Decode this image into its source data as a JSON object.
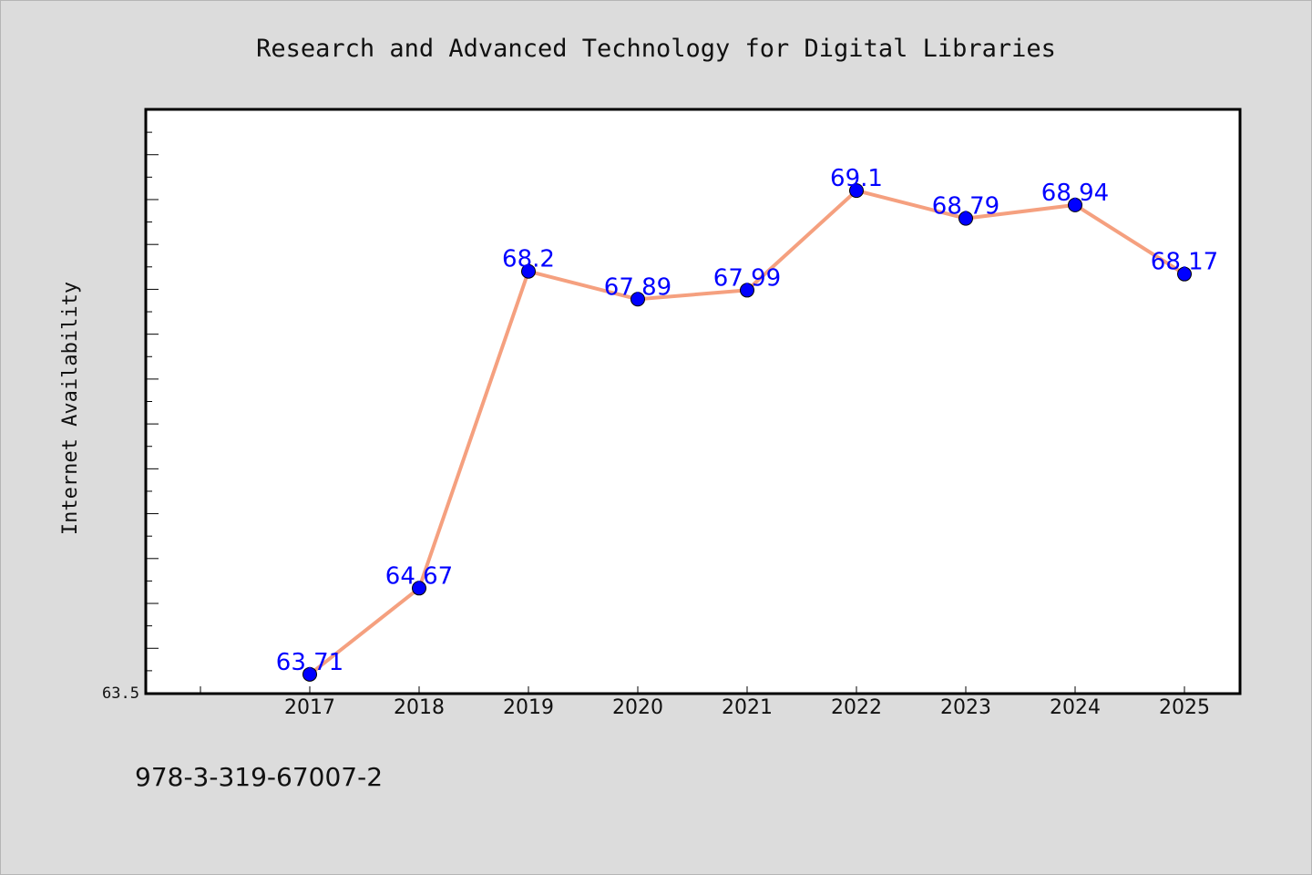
{
  "title": "Research and Advanced Technology for Digital Libraries",
  "footer_text": "978-3-319-67007-2",
  "colors": {
    "background": "#dcdcdc",
    "plot_background": "#ffffff",
    "line": "#f5a07f",
    "marker": "#0000ff",
    "label": "#0000ff"
  },
  "chart_data": {
    "type": "line",
    "title": "Research and Advanced Technology for Digital Libraries",
    "xlabel": "",
    "ylabel": "Internet Availability",
    "categories": [
      "2017",
      "2018",
      "2019",
      "2020",
      "2021",
      "2022",
      "2023",
      "2024",
      "2025"
    ],
    "series": [
      {
        "values": [
          63.71,
          64.67,
          68.2,
          67.89,
          67.99,
          69.1,
          68.79,
          68.94,
          68.17
        ],
        "labels": [
          "63.71",
          "64.67",
          "68.2",
          "67.89",
          "67.99",
          "69.1",
          "68.79",
          "68.94",
          "68.17"
        ]
      }
    ],
    "ylim": [
      63.5,
      70.0
    ],
    "ytick_label": "63.5",
    "grid": false,
    "legend": "none",
    "markers": "filled circles"
  }
}
